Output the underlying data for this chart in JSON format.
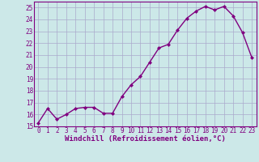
{
  "x": [
    0,
    1,
    2,
    3,
    4,
    5,
    6,
    7,
    8,
    9,
    10,
    11,
    12,
    13,
    14,
    15,
    16,
    17,
    18,
    19,
    20,
    21,
    22,
    23
  ],
  "y": [
    15.3,
    16.5,
    15.6,
    16.0,
    16.5,
    16.6,
    16.6,
    16.1,
    16.1,
    17.5,
    18.5,
    19.2,
    20.4,
    21.6,
    21.9,
    23.1,
    24.1,
    24.7,
    25.1,
    24.8,
    25.1,
    24.3,
    22.9,
    20.8
  ],
  "line_color": "#800080",
  "marker": "D",
  "marker_size": 2.0,
  "bg_color": "#cce8e8",
  "grid_color": "#aaaacc",
  "xlabel": "Windchill (Refroidissement éolien,°C)",
  "ylim": [
    15,
    25.5
  ],
  "xlim": [
    -0.5,
    23.5
  ],
  "yticks": [
    15,
    16,
    17,
    18,
    19,
    20,
    21,
    22,
    23,
    24,
    25
  ],
  "xticks": [
    0,
    1,
    2,
    3,
    4,
    5,
    6,
    7,
    8,
    9,
    10,
    11,
    12,
    13,
    14,
    15,
    16,
    17,
    18,
    19,
    20,
    21,
    22,
    23
  ],
  "xlabel_fontsize": 6.5,
  "tick_fontsize": 5.5,
  "line_width": 1.0
}
